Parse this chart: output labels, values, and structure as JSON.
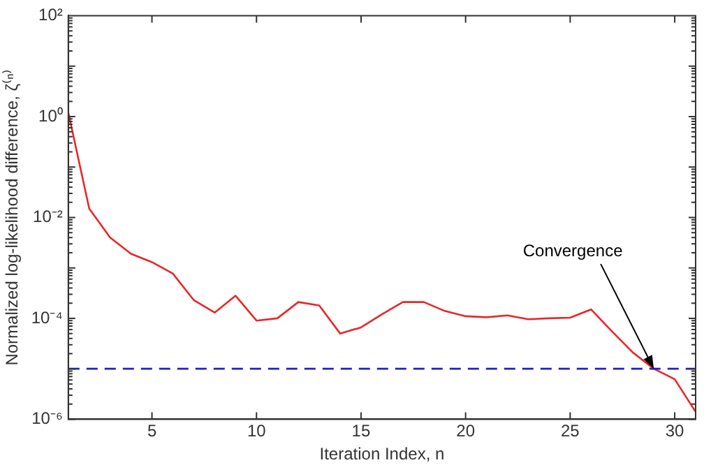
{
  "chart_data": {
    "type": "line",
    "xlabel": "Iteration Index, n",
    "ylabel": "Normalized log-likelihood difference, ζ⁽ⁿ⁾",
    "x": [
      1,
      2,
      3,
      4,
      5,
      6,
      7,
      8,
      9,
      10,
      11,
      12,
      13,
      14,
      15,
      16,
      17,
      18,
      19,
      20,
      21,
      22,
      23,
      24,
      25,
      26,
      27,
      28,
      29,
      30,
      31
    ],
    "series": [
      {
        "color": "#e8272a",
        "values": [
          1.2,
          0.015,
          0.004,
          0.0019,
          0.0013,
          0.00077,
          0.00023,
          0.00013,
          0.00028,
          9e-05,
          0.0001,
          0.00021,
          0.00018,
          5e-05,
          6.6e-05,
          0.00012,
          0.00021,
          0.00021,
          0.00014,
          0.00011,
          0.000105,
          0.000114,
          9.6e-05,
          0.0001,
          0.000103,
          0.00015,
          5.5e-05,
          2.1e-05,
          1e-05,
          6.2e-06,
          1.4e-06
        ]
      }
    ],
    "xlim": [
      1,
      31
    ],
    "xticks": [
      5,
      10,
      15,
      20,
      25,
      30
    ],
    "ylim": [
      1e-06,
      100
    ],
    "yticks": [
      {
        "value": 1e-06,
        "label": "10⁻⁶"
      },
      {
        "value": 0.0001,
        "label": "10⁻⁴"
      },
      {
        "value": 0.01,
        "label": "10⁻²"
      },
      {
        "value": 1,
        "label": "10⁰"
      },
      {
        "value": 100,
        "label": "10²"
      }
    ],
    "log": "y",
    "grid": false,
    "legend": false,
    "marker": "none",
    "line_style": "solid",
    "ref_lines": [
      {
        "axis": "y",
        "value": 1e-05,
        "color": "#1f1fd0",
        "line_style": "dashed"
      }
    ],
    "annotations": [
      {
        "text": "Convergence",
        "x": 29,
        "y": 1e-05
      }
    ]
  }
}
